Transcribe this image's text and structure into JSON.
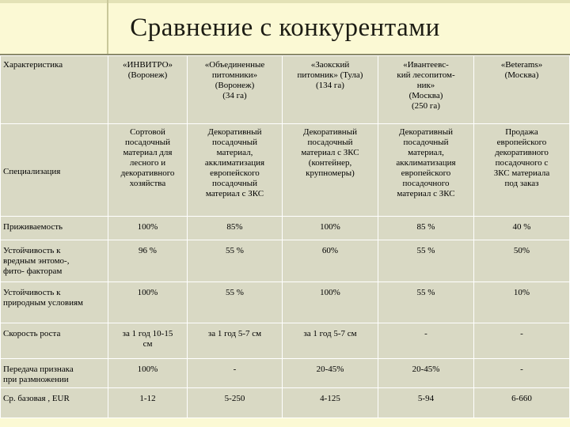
{
  "slide": {
    "title": "Сравнение с конкурентами"
  },
  "table": {
    "header_label": "Характеристика",
    "columns": [
      "«ИНВИТРО»\n(Воронеж)",
      "«Объединенные\nпитомники»\n(Воронеж)\n(34 га)",
      "«Заокский\nпитомник» (Тула)\n(134 га)",
      "«Ивантеевс-\nкий лесопитом-\nник»\n(Москва)\n(250 га)",
      "«Beterams»\n(Москва)"
    ],
    "rows": [
      {
        "label": "Специализация",
        "values": [
          "Сортовой\nпосадочный\nматериал для\nлесного и\nдекоративного\nхозяйства",
          "Декоративный\nпосадочный\nматериал,\nакклиматизация\nевропейского\nпосадочный\nматериал с ЗКС",
          "Декоративный\nпосадочный\nматериал с ЗКС\n(контейнер,\nкрупномеры)",
          "Декоративный\nпосадочный\nматериал,\nакклиматизация\nевропейского\nпосадочного\nматериал с ЗКС",
          "Продажа\nевропейского\nдекоративного\nпосадочного с\nЗКС материала\nпод заказ"
        ]
      },
      {
        "label": "Приживаемость",
        "values": [
          "100%",
          "85%",
          "100%",
          "85 %",
          "40 %"
        ]
      },
      {
        "label": "Устойчивость к\nвредным энтомо-,\nфито- факторам",
        "values": [
          "96 %",
          "55 %",
          "60%",
          "55 %",
          "50%"
        ]
      },
      {
        "label": "Устойчивость к\nприродным условиям",
        "values": [
          "100%",
          "55 %",
          "100%",
          "55 %",
          "10%"
        ]
      },
      {
        "label": "Скорость роста",
        "values": [
          "за 1 год 10-15\nсм",
          "за 1 год 5-7 см",
          "за 1 год  5-7 см",
          "-",
          "-"
        ]
      },
      {
        "label": "Передача признака\nпри размножении",
        "values": [
          "100%",
          "-",
          "20-45%",
          "20-45%",
          "-"
        ]
      },
      {
        "label": "Ср. базовая , EUR",
        "values": [
          "1-12",
          "5-250",
          "4-125",
          "5-94",
          "6-660"
        ]
      }
    ]
  }
}
